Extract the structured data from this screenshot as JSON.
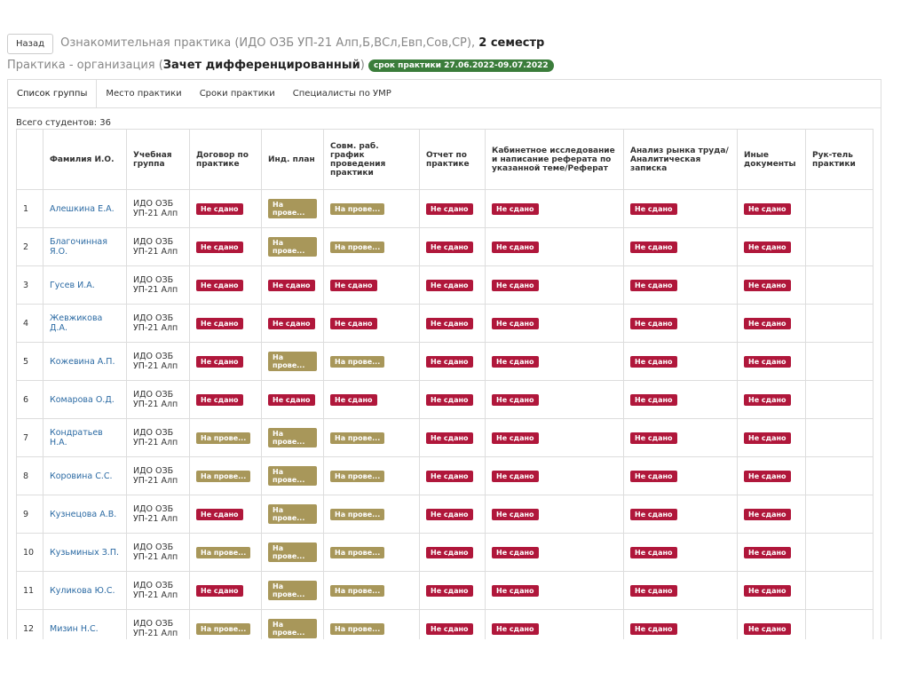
{
  "header": {
    "back_button": "Назад",
    "title": "Ознакомительная практика (ИДО ОЗБ УП-21 Алп,Б,ВСл,Евп,Сов,СР),",
    "semester": "2 семестр",
    "subtitle_prefix": "Практика - организация (",
    "assessment": "Зачет дифференцированный",
    "subtitle_suffix": ")",
    "period_badge": "срок практики 27.06.2022-09.07.2022"
  },
  "tabs": [
    "Список группы",
    "Место практики",
    "Сроки практики",
    "Специалисты по УМР"
  ],
  "student_count": "Всего студентов: 36",
  "badge_colors": {
    "Не сдано": "#b0173b",
    "На прове...": "#a8975a"
  },
  "table": {
    "columns": [
      "",
      "Фамилия И.О.",
      "Учебная группа",
      "Договор по практике",
      "Инд. план",
      "Совм. раб. график проведения практики",
      "Отчет по практике",
      "Кабинетное исследование и написание реферата по указанной теме/Реферат",
      "Анализ рынка труда/ Аналитическая записка",
      "Иные документы",
      "Рук-тель практики"
    ],
    "rows": [
      {
        "num": 1,
        "name": "Алешкина Е.А.",
        "group": "ИДО ОЗБ УП-21 Алп",
        "statuses": [
          "Не сдано",
          "На прове...",
          "На прове...",
          "Не сдано",
          "Не сдано",
          "Не сдано",
          "Не сдано"
        ]
      },
      {
        "num": 2,
        "name": "Благочинная Я.О.",
        "group": "ИДО ОЗБ УП-21 Алп",
        "statuses": [
          "Не сдано",
          "На прове...",
          "На прове...",
          "Не сдано",
          "Не сдано",
          "Не сдано",
          "Не сдано"
        ]
      },
      {
        "num": 3,
        "name": "Гусев И.А.",
        "group": "ИДО ОЗБ УП-21 Алп",
        "statuses": [
          "Не сдано",
          "Не сдано",
          "Не сдано",
          "Не сдано",
          "Не сдано",
          "Не сдано",
          "Не сдано"
        ]
      },
      {
        "num": 4,
        "name": "Жевжикова Д.А.",
        "group": "ИДО ОЗБ УП-21 Алп",
        "statuses": [
          "Не сдано",
          "Не сдано",
          "Не сдано",
          "Не сдано",
          "Не сдано",
          "Не сдано",
          "Не сдано"
        ]
      },
      {
        "num": 5,
        "name": "Кожевина А.П.",
        "group": "ИДО ОЗБ УП-21 Алп",
        "statuses": [
          "Не сдано",
          "На прове...",
          "На прове...",
          "Не сдано",
          "Не сдано",
          "Не сдано",
          "Не сдано"
        ]
      },
      {
        "num": 6,
        "name": "Комарова О.Д.",
        "group": "ИДО ОЗБ УП-21 Алп",
        "statuses": [
          "Не сдано",
          "Не сдано",
          "Не сдано",
          "Не сдано",
          "Не сдано",
          "Не сдано",
          "Не сдано"
        ]
      },
      {
        "num": 7,
        "name": "Кондратьев Н.А.",
        "group": "ИДО ОЗБ УП-21 Алп",
        "statuses": [
          "На прове...",
          "На прове...",
          "На прове...",
          "Не сдано",
          "Не сдано",
          "Не сдано",
          "Не сдано"
        ]
      },
      {
        "num": 8,
        "name": "Коровина С.С.",
        "group": "ИДО ОЗБ УП-21 Алп",
        "statuses": [
          "На прове...",
          "На прове...",
          "На прове...",
          "Не сдано",
          "Не сдано",
          "Не сдано",
          "Не сдано"
        ]
      },
      {
        "num": 9,
        "name": "Кузнецова А.В.",
        "group": "ИДО ОЗБ УП-21 Алп",
        "statuses": [
          "Не сдано",
          "На прове...",
          "На прове...",
          "Не сдано",
          "Не сдано",
          "Не сдано",
          "Не сдано"
        ]
      },
      {
        "num": 10,
        "name": "Кузьминых З.П.",
        "group": "ИДО ОЗБ УП-21 Алп",
        "statuses": [
          "На прове...",
          "На прове...",
          "На прове...",
          "Не сдано",
          "Не сдано",
          "Не сдано",
          "Не сдано"
        ]
      },
      {
        "num": 11,
        "name": "Куликова Ю.С.",
        "group": "ИДО ОЗБ УП-21 Алп",
        "statuses": [
          "Не сдано",
          "На прове...",
          "На прове...",
          "Не сдано",
          "Не сдано",
          "Не сдано",
          "Не сдано"
        ]
      },
      {
        "num": 12,
        "name": "Мизин Н.С.",
        "group": "ИДО ОЗБ УП-21 Алп",
        "statuses": [
          "На прове...",
          "На прове...",
          "На прове...",
          "Не сдано",
          "Не сдано",
          "Не сдано",
          "Не сдано"
        ]
      }
    ]
  }
}
